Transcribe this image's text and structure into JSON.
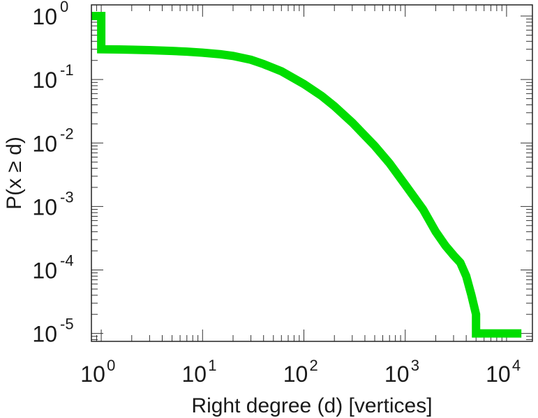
{
  "chart_data": {
    "type": "line",
    "title": "",
    "xlabel": "Right degree (d) [vertices]",
    "ylabel": "P(x ≥ d)",
    "xscale": "log",
    "yscale": "log",
    "xlim": [
      0.8,
      18000
    ],
    "ylim": [
      7.5e-06,
      1.5
    ],
    "grid": false,
    "legend": "none",
    "series_color": "#00dd00",
    "x_ticks": [
      {
        "value": 1,
        "base": "10",
        "exp": "0"
      },
      {
        "value": 10,
        "base": "10",
        "exp": "1"
      },
      {
        "value": 100,
        "base": "10",
        "exp": "2"
      },
      {
        "value": 1000,
        "base": "10",
        "exp": "3"
      },
      {
        "value": 10000,
        "base": "10",
        "exp": "4"
      }
    ],
    "y_ticks": [
      {
        "value": 1,
        "base": "10",
        "exp": "0"
      },
      {
        "value": 0.1,
        "base": "10",
        "exp": "-1"
      },
      {
        "value": 0.01,
        "base": "10",
        "exp": "-2"
      },
      {
        "value": 0.001,
        "base": "10",
        "exp": "-3"
      },
      {
        "value": 0.0001,
        "base": "10",
        "exp": "-4"
      },
      {
        "value": 1e-05,
        "base": "10",
        "exp": "-5"
      }
    ],
    "series": [
      {
        "x": [
          0.8,
          1,
          1,
          1.5,
          2,
          3,
          5,
          7,
          10,
          15,
          20,
          30,
          40,
          60,
          100,
          150,
          200,
          300,
          500,
          700,
          1000,
          1500,
          2000,
          2500,
          3000,
          3500,
          4000,
          4500,
          5000,
          5000,
          14000
        ],
        "y": [
          1,
          1,
          0.3,
          0.298,
          0.295,
          0.29,
          0.282,
          0.275,
          0.265,
          0.25,
          0.235,
          0.205,
          0.175,
          0.135,
          0.085,
          0.055,
          0.038,
          0.021,
          0.009,
          0.0048,
          0.0022,
          0.0009,
          0.0004,
          0.00024,
          0.00017,
          0.00013,
          8e-05,
          4e-05,
          2e-05,
          1e-05,
          1e-05
        ]
      }
    ]
  }
}
